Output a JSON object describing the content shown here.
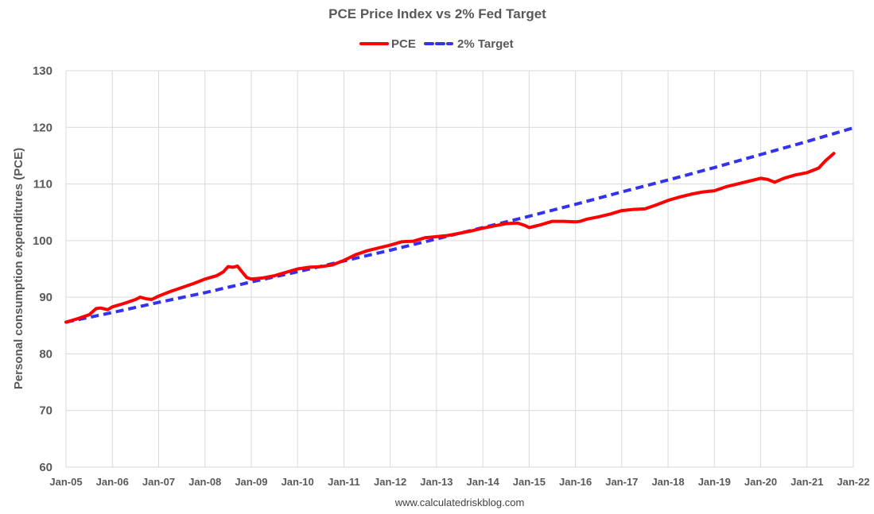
{
  "chart_data": {
    "type": "line",
    "title": "PCE Price Index vs 2% Fed Target",
    "xlabel": "",
    "ylabel": "Personal consumption expenditures (PCE)",
    "source": "www.calculatedriskblog.com",
    "ylim": [
      60,
      130
    ],
    "yticks": [
      60,
      70,
      80,
      90,
      100,
      110,
      120,
      130
    ],
    "xlim": [
      2005.0,
      2022.0
    ],
    "xticks": [
      {
        "x": 2005,
        "label": "Jan-05"
      },
      {
        "x": 2006,
        "label": "Jan-06"
      },
      {
        "x": 2007,
        "label": "Jan-07"
      },
      {
        "x": 2008,
        "label": "Jan-08"
      },
      {
        "x": 2009,
        "label": "Jan-09"
      },
      {
        "x": 2010,
        "label": "Jan-10"
      },
      {
        "x": 2011,
        "label": "Jan-11"
      },
      {
        "x": 2012,
        "label": "Jan-12"
      },
      {
        "x": 2013,
        "label": "Jan-13"
      },
      {
        "x": 2014,
        "label": "Jan-14"
      },
      {
        "x": 2015,
        "label": "Jan-15"
      },
      {
        "x": 2016,
        "label": "Jan-16"
      },
      {
        "x": 2017,
        "label": "Jan-17"
      },
      {
        "x": 2018,
        "label": "Jan-18"
      },
      {
        "x": 2019,
        "label": "Jan-19"
      },
      {
        "x": 2020,
        "label": "Jan-20"
      },
      {
        "x": 2021,
        "label": "Jan-21"
      },
      {
        "x": 2022,
        "label": "Jan-22"
      }
    ],
    "legend_position": "top-center",
    "grid": true,
    "series": [
      {
        "name": "PCE",
        "color": "#ff0000",
        "style": "solid",
        "points": [
          [
            2005.0,
            85.6
          ],
          [
            2005.25,
            86.2
          ],
          [
            2005.5,
            86.9
          ],
          [
            2005.65,
            88.0
          ],
          [
            2005.75,
            88.1
          ],
          [
            2005.9,
            87.8
          ],
          [
            2006.0,
            88.3
          ],
          [
            2006.25,
            88.9
          ],
          [
            2006.5,
            89.6
          ],
          [
            2006.6,
            90.0
          ],
          [
            2006.75,
            89.7
          ],
          [
            2006.85,
            89.6
          ],
          [
            2007.0,
            90.2
          ],
          [
            2007.25,
            91.0
          ],
          [
            2007.5,
            91.7
          ],
          [
            2007.75,
            92.4
          ],
          [
            2008.0,
            93.2
          ],
          [
            2008.25,
            93.8
          ],
          [
            2008.4,
            94.5
          ],
          [
            2008.5,
            95.4
          ],
          [
            2008.6,
            95.3
          ],
          [
            2008.7,
            95.5
          ],
          [
            2008.8,
            94.5
          ],
          [
            2008.9,
            93.5
          ],
          [
            2009.0,
            93.2
          ],
          [
            2009.25,
            93.4
          ],
          [
            2009.5,
            93.8
          ],
          [
            2009.75,
            94.4
          ],
          [
            2010.0,
            95.0
          ],
          [
            2010.25,
            95.3
          ],
          [
            2010.5,
            95.4
          ],
          [
            2010.75,
            95.7
          ],
          [
            2011.0,
            96.5
          ],
          [
            2011.25,
            97.5
          ],
          [
            2011.5,
            98.2
          ],
          [
            2011.75,
            98.7
          ],
          [
            2012.0,
            99.2
          ],
          [
            2012.25,
            99.8
          ],
          [
            2012.5,
            99.9
          ],
          [
            2012.75,
            100.5
          ],
          [
            2013.0,
            100.7
          ],
          [
            2013.25,
            100.9
          ],
          [
            2013.5,
            101.3
          ],
          [
            2013.75,
            101.7
          ],
          [
            2014.0,
            102.2
          ],
          [
            2014.25,
            102.6
          ],
          [
            2014.5,
            103.0
          ],
          [
            2014.75,
            103.1
          ],
          [
            2014.9,
            102.7
          ],
          [
            2015.0,
            102.3
          ],
          [
            2015.25,
            102.8
          ],
          [
            2015.5,
            103.4
          ],
          [
            2015.75,
            103.4
          ],
          [
            2016.0,
            103.3
          ],
          [
            2016.1,
            103.4
          ],
          [
            2016.25,
            103.8
          ],
          [
            2016.5,
            104.2
          ],
          [
            2016.75,
            104.7
          ],
          [
            2017.0,
            105.3
          ],
          [
            2017.25,
            105.5
          ],
          [
            2017.5,
            105.6
          ],
          [
            2017.75,
            106.3
          ],
          [
            2018.0,
            107.1
          ],
          [
            2018.25,
            107.7
          ],
          [
            2018.5,
            108.2
          ],
          [
            2018.75,
            108.6
          ],
          [
            2019.0,
            108.8
          ],
          [
            2019.25,
            109.5
          ],
          [
            2019.5,
            110.0
          ],
          [
            2019.75,
            110.5
          ],
          [
            2020.0,
            111.0
          ],
          [
            2020.15,
            110.8
          ],
          [
            2020.3,
            110.3
          ],
          [
            2020.5,
            111.0
          ],
          [
            2020.75,
            111.6
          ],
          [
            2021.0,
            112.0
          ],
          [
            2021.25,
            112.8
          ],
          [
            2021.4,
            114.1
          ],
          [
            2021.58,
            115.4
          ]
        ]
      },
      {
        "name": "2% Target",
        "color": "#3333ee",
        "style": "dashed",
        "points": [
          [
            2005.0,
            85.6
          ],
          [
            2006.0,
            87.3
          ],
          [
            2007.0,
            89.1
          ],
          [
            2008.0,
            90.8
          ],
          [
            2009.0,
            92.7
          ],
          [
            2010.0,
            94.5
          ],
          [
            2011.0,
            96.4
          ],
          [
            2012.0,
            98.3
          ],
          [
            2013.0,
            100.3
          ],
          [
            2014.0,
            102.3
          ],
          [
            2015.0,
            104.3
          ],
          [
            2016.0,
            106.4
          ],
          [
            2017.0,
            108.6
          ],
          [
            2018.0,
            110.7
          ],
          [
            2019.0,
            112.9
          ],
          [
            2020.0,
            115.2
          ],
          [
            2021.0,
            117.5
          ],
          [
            2022.0,
            119.9
          ]
        ]
      }
    ]
  }
}
